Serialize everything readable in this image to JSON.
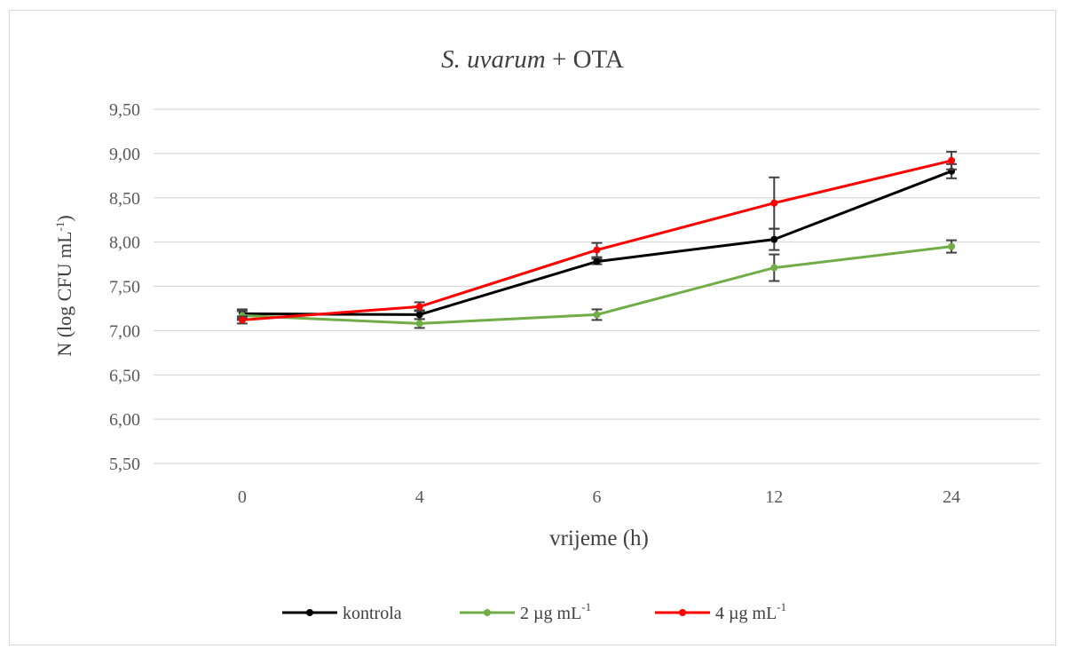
{
  "chart_data": {
    "type": "line",
    "title_italic": "S. uvarum",
    "title_rest": " + OTA",
    "xlabel": "vrijeme (h)",
    "ylabel_main": "N (log CFU mL",
    "ylabel_sup": "-1",
    "ylabel_end": ")",
    "categories": [
      "0",
      "4",
      "6",
      "12",
      "24"
    ],
    "yticks": [
      "5,50",
      "6,00",
      "6,50",
      "7,00",
      "7,50",
      "8,00",
      "8,50",
      "9,00",
      "9,50"
    ],
    "ylim": [
      5.5,
      9.5
    ],
    "grid": true,
    "legend_position": "bottom",
    "series": [
      {
        "name": "kontrola",
        "name_sup": "",
        "color": "#000000",
        "values": [
          7.19,
          7.18,
          7.78,
          8.03,
          8.8
        ],
        "errors": [
          0.05,
          0.05,
          0.03,
          0.12,
          0.08
        ]
      },
      {
        "name": "2 µg mL",
        "name_sup": "-1",
        "color": "#70ad47",
        "values": [
          7.17,
          7.08,
          7.18,
          7.71,
          7.95
        ],
        "errors": [
          0.05,
          0.05,
          0.06,
          0.15,
          0.07
        ]
      },
      {
        "name": "4 µg mL",
        "name_sup": "-1",
        "color": "#ff0000",
        "values": [
          7.12,
          7.27,
          7.91,
          8.44,
          8.92
        ],
        "errors": [
          0.04,
          0.05,
          0.08,
          0.29,
          0.1
        ]
      }
    ]
  }
}
